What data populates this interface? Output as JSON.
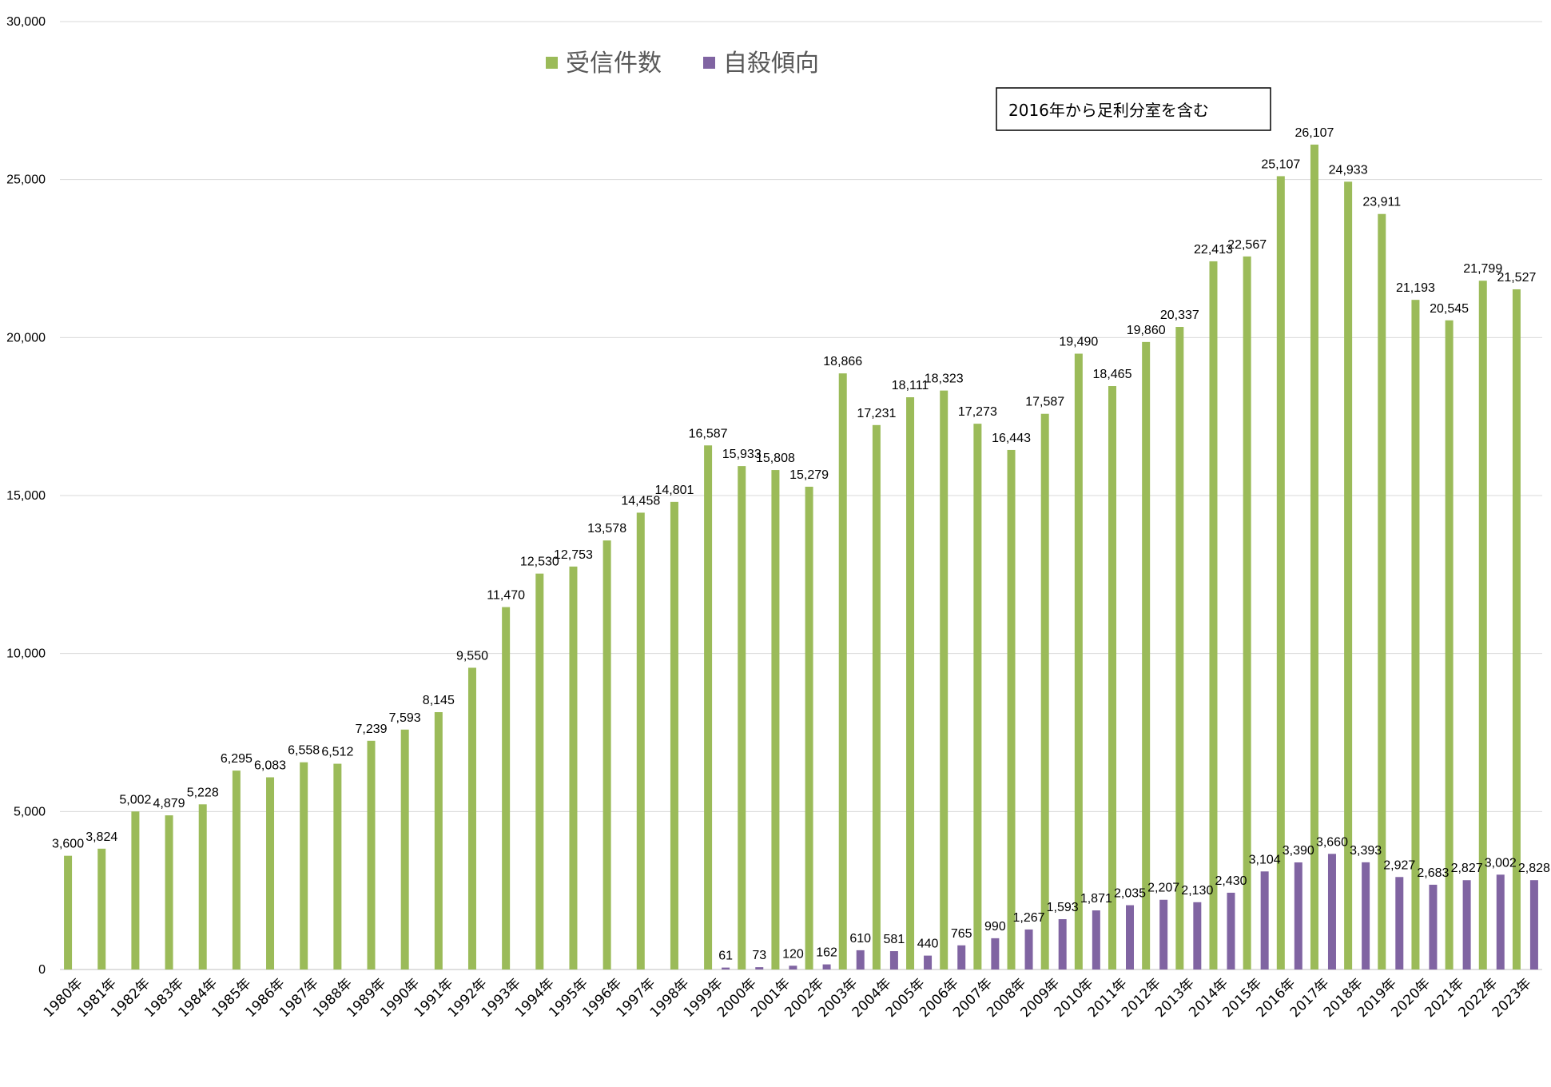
{
  "chart_data": {
    "type": "bar",
    "ylim": [
      0,
      30000
    ],
    "yticks": [
      "0",
      "5,000",
      "10,000",
      "15,000",
      "20,000",
      "25,000",
      "30,000"
    ],
    "grid": true,
    "legend_position": "top-center",
    "annotation": "2016年から足利分室を含む",
    "categories": [
      "1980年",
      "1981年",
      "1982年",
      "1983年",
      "1984年",
      "1985年",
      "1986年",
      "1987年",
      "1988年",
      "1989年",
      "1990年",
      "1991年",
      "1992年",
      "1993年",
      "1994年",
      "1995年",
      "1996年",
      "1997年",
      "1998年",
      "1999年",
      "2000年",
      "2001年",
      "2002年",
      "2003年",
      "2004年",
      "2005年",
      "2006年",
      "2007年",
      "2008年",
      "2009年",
      "2010年",
      "2011年",
      "2012年",
      "2013年",
      "2014年",
      "2015年",
      "2016年",
      "2017年",
      "2018年",
      "2019年",
      "2020年",
      "2021年",
      "2022年",
      "2023年"
    ],
    "series": [
      {
        "name": "受信件数",
        "color": "#9BBB59",
        "values": [
          3600,
          3824,
          5002,
          4879,
          5228,
          6295,
          6083,
          6558,
          6512,
          7239,
          7593,
          8145,
          9550,
          11470,
          12530,
          12753,
          13578,
          14458,
          14801,
          16587,
          15933,
          15808,
          15279,
          18866,
          17231,
          18111,
          18323,
          17273,
          16443,
          17587,
          19490,
          18465,
          19860,
          20337,
          22413,
          22567,
          25107,
          26107,
          24933,
          23911,
          21193,
          20545,
          21799,
          21527
        ],
        "labels": [
          "3,600",
          "3,824",
          "5,002",
          "4,879",
          "5,228",
          "6,295",
          "6,083",
          "6,558",
          "6,512",
          "7,239",
          "7,593",
          "8,145",
          "9,550",
          "11,470",
          "12,530",
          "12,753",
          "13,578",
          "14,458",
          "14,801",
          "16,587",
          "15,933",
          "15,808",
          "15,279",
          "18,866",
          "17,231",
          "18,111",
          "18,323",
          "17,273",
          "16,443",
          "17,587",
          "19,490",
          "18,465",
          "19,860",
          "20,337",
          "22,413",
          "22,567",
          "25,107",
          "26,107",
          "24,933",
          "23,911",
          "21,193",
          "20,545",
          "21,799",
          "21,527"
        ]
      },
      {
        "name": "自殺傾向",
        "color": "#8064A2",
        "values": [
          null,
          null,
          null,
          null,
          null,
          null,
          null,
          null,
          null,
          null,
          null,
          null,
          null,
          null,
          null,
          null,
          null,
          null,
          null,
          61,
          73,
          120,
          162,
          610,
          581,
          440,
          765,
          990,
          1267,
          1593,
          1871,
          2035,
          2207,
          2130,
          2430,
          3104,
          3390,
          3660,
          3393,
          2927,
          2683,
          2827,
          3002,
          2828
        ],
        "labels": [
          "",
          "",
          "",
          "",
          "",
          "",
          "",
          "",
          "",
          "",
          "",
          "",
          "",
          "",
          "",
          "",
          "",
          "",
          "",
          "61",
          "73",
          "120",
          "162",
          "610",
          "581",
          "440",
          "765",
          "990",
          "1,267",
          "1,593",
          "1,871",
          "2,035",
          "2,207",
          "2,130",
          "2,430",
          "3,104",
          "3,390",
          "3,660",
          "3,393",
          "2,927",
          "2,683",
          "2,827",
          "3,002",
          "2,828"
        ]
      }
    ]
  }
}
